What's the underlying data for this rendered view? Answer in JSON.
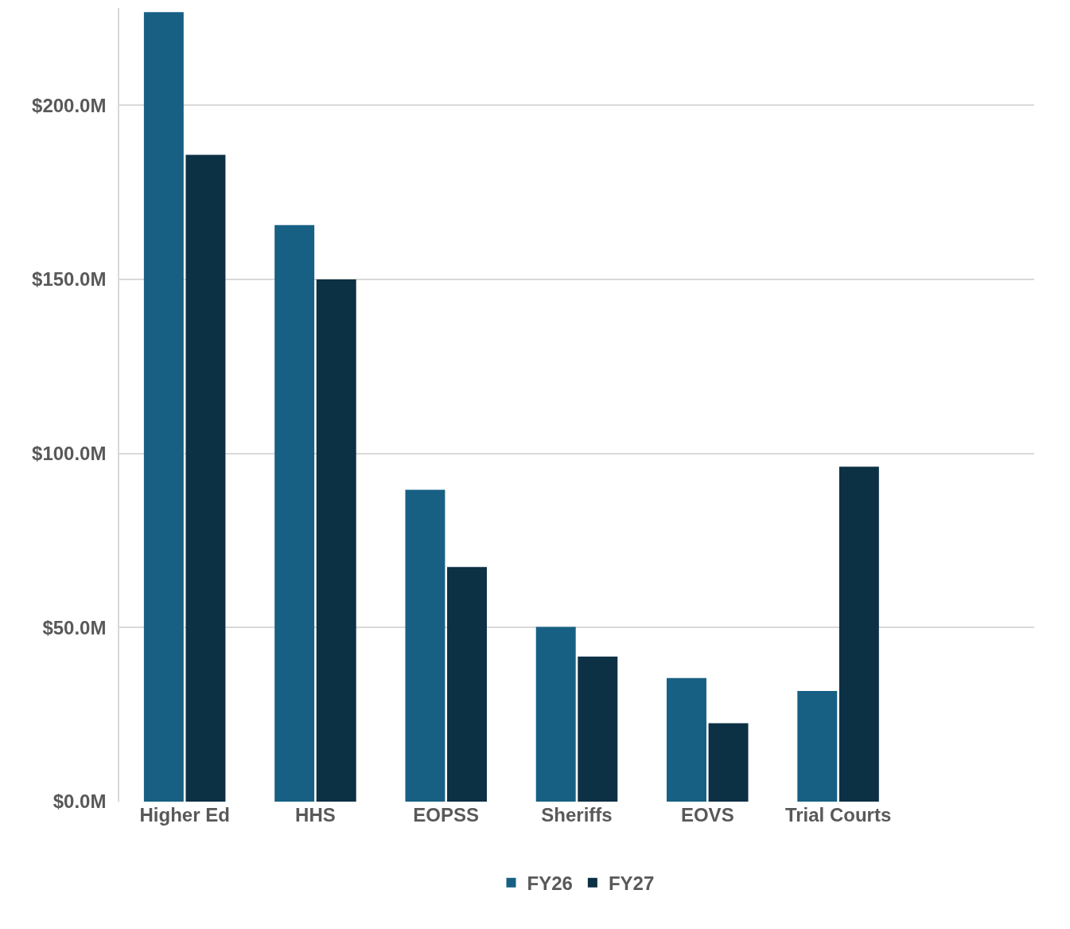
{
  "chart_data": {
    "type": "bar",
    "categories": [
      "Higher Ed",
      "HHS",
      "EOPSS",
      "Sheriffs",
      "EOVS",
      "Trial Courts",
      null
    ],
    "series": [
      {
        "name": "FY26",
        "color": "#176083",
        "values": [
          226.8,
          165.6,
          89.6,
          50.2,
          35.5,
          31.8,
          null
        ]
      },
      {
        "name": "FY27",
        "color": "#0c3044",
        "values": [
          185.8,
          150,
          67.4,
          41.7,
          22.5,
          96.2,
          null
        ]
      }
    ],
    "ylim": [
      0,
      228
    ],
    "yticks": [
      {
        "value": 0,
        "label": "$0.0M"
      },
      {
        "value": 50,
        "label": "$50.0M"
      },
      {
        "value": 100,
        "label": "$100.0M"
      },
      {
        "value": 150,
        "label": "$150.0M"
      },
      {
        "value": 200,
        "label": "$200.0M"
      }
    ],
    "grid": "y",
    "legend": "bottom"
  }
}
